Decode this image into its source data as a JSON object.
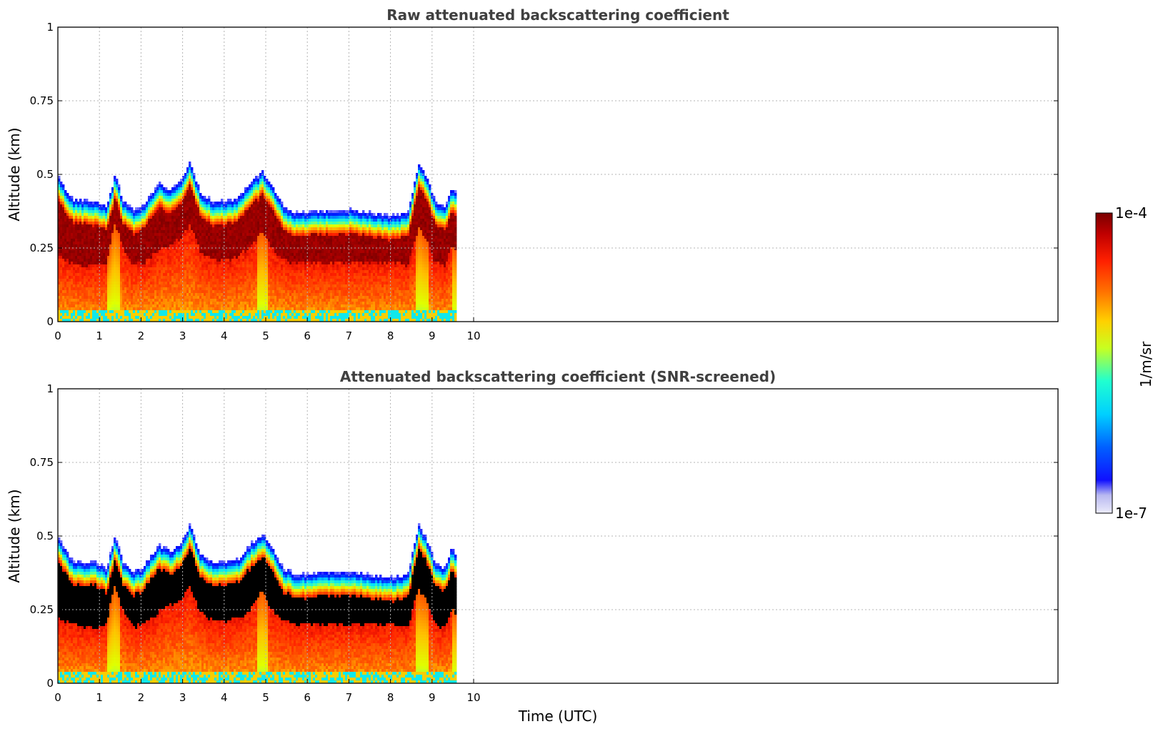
{
  "chart_data": [
    {
      "type": "heatmap",
      "title": "Raw attenuated backscattering coefficient",
      "xlabel": "",
      "ylabel": "Altitude (km)",
      "xlim": [
        0,
        24
      ],
      "ylim": [
        0,
        1
      ],
      "x_ticks": [
        "0",
        "1",
        "2",
        "3",
        "4",
        "5",
        "6",
        "7",
        "8",
        "9",
        "10"
      ],
      "y_ticks": [
        "0",
        "0.25",
        "0.5",
        "0.75",
        "1"
      ],
      "grid": true,
      "data_extent_time": [
        0,
        9.6
      ],
      "cloud_top_km": [
        [
          0.0,
          0.47
        ],
        [
          0.3,
          0.4
        ],
        [
          0.6,
          0.39
        ],
        [
          0.9,
          0.39
        ],
        [
          1.15,
          0.37
        ],
        [
          1.35,
          0.48
        ],
        [
          1.55,
          0.39
        ],
        [
          1.8,
          0.36
        ],
        [
          2.0,
          0.37
        ],
        [
          2.2,
          0.41
        ],
        [
          2.4,
          0.45
        ],
        [
          2.7,
          0.43
        ],
        [
          2.95,
          0.46
        ],
        [
          3.15,
          0.52
        ],
        [
          3.4,
          0.42
        ],
        [
          3.7,
          0.39
        ],
        [
          4.0,
          0.39
        ],
        [
          4.3,
          0.4
        ],
        [
          4.6,
          0.45
        ],
        [
          4.9,
          0.49
        ],
        [
          5.1,
          0.45
        ],
        [
          5.4,
          0.37
        ],
        [
          5.7,
          0.35
        ],
        [
          6.0,
          0.35
        ],
        [
          6.5,
          0.36
        ],
        [
          7.0,
          0.36
        ],
        [
          7.5,
          0.35
        ],
        [
          8.0,
          0.34
        ],
        [
          8.4,
          0.35
        ],
        [
          8.65,
          0.52
        ],
        [
          8.85,
          0.47
        ],
        [
          9.05,
          0.39
        ],
        [
          9.3,
          0.37
        ],
        [
          9.45,
          0.44
        ],
        [
          9.6,
          0.41
        ]
      ],
      "cloud_base_km": [
        [
          0.0,
          0.22
        ],
        [
          0.3,
          0.2
        ],
        [
          0.6,
          0.19
        ],
        [
          0.9,
          0.19
        ],
        [
          1.15,
          0.2
        ],
        [
          1.35,
          0.34
        ],
        [
          1.55,
          0.24
        ],
        [
          1.8,
          0.19
        ],
        [
          2.0,
          0.2
        ],
        [
          2.3,
          0.23
        ],
        [
          2.6,
          0.26
        ],
        [
          2.9,
          0.28
        ],
        [
          3.15,
          0.33
        ],
        [
          3.4,
          0.24
        ],
        [
          3.7,
          0.21
        ],
        [
          4.0,
          0.21
        ],
        [
          4.3,
          0.22
        ],
        [
          4.6,
          0.25
        ],
        [
          4.9,
          0.31
        ],
        [
          5.1,
          0.25
        ],
        [
          5.4,
          0.21
        ],
        [
          5.7,
          0.2
        ],
        [
          6.0,
          0.2
        ],
        [
          6.5,
          0.2
        ],
        [
          7.0,
          0.2
        ],
        [
          7.5,
          0.2
        ],
        [
          8.0,
          0.2
        ],
        [
          8.4,
          0.19
        ],
        [
          8.65,
          0.32
        ],
        [
          8.85,
          0.28
        ],
        [
          9.05,
          0.2
        ],
        [
          9.3,
          0.19
        ],
        [
          9.45,
          0.26
        ],
        [
          9.6,
          0.23
        ]
      ],
      "colormap": "jet-like (white→blue→cyan→yellow→red→dark red)"
    },
    {
      "type": "heatmap",
      "title": "Attenuated backscattering coefficient (SNR-screened)",
      "xlabel": "Time (UTC)",
      "ylabel": "Altitude (km)",
      "xlim": [
        0,
        24
      ],
      "ylim": [
        0,
        1
      ],
      "x_ticks": [
        "0",
        "1",
        "2",
        "3",
        "4",
        "5",
        "6",
        "7",
        "8",
        "9",
        "10"
      ],
      "y_ticks": [
        "0",
        "0.25",
        "0.5",
        "0.75",
        "1"
      ],
      "grid": true,
      "data_extent_time": [
        0,
        9.6
      ],
      "screened_color": "#000000",
      "colormap": "jet-like (white→blue→cyan→yellow→red→dark red)"
    }
  ],
  "colorbar": {
    "label": "1/m/sr",
    "max_label": "1e-4",
    "min_label": "1e-7",
    "colors": [
      "#e6e6fa",
      "#0000ff",
      "#00aaff",
      "#00ffff",
      "#ffff00",
      "#ff8800",
      "#ff2000",
      "#b00000",
      "#800000"
    ]
  }
}
